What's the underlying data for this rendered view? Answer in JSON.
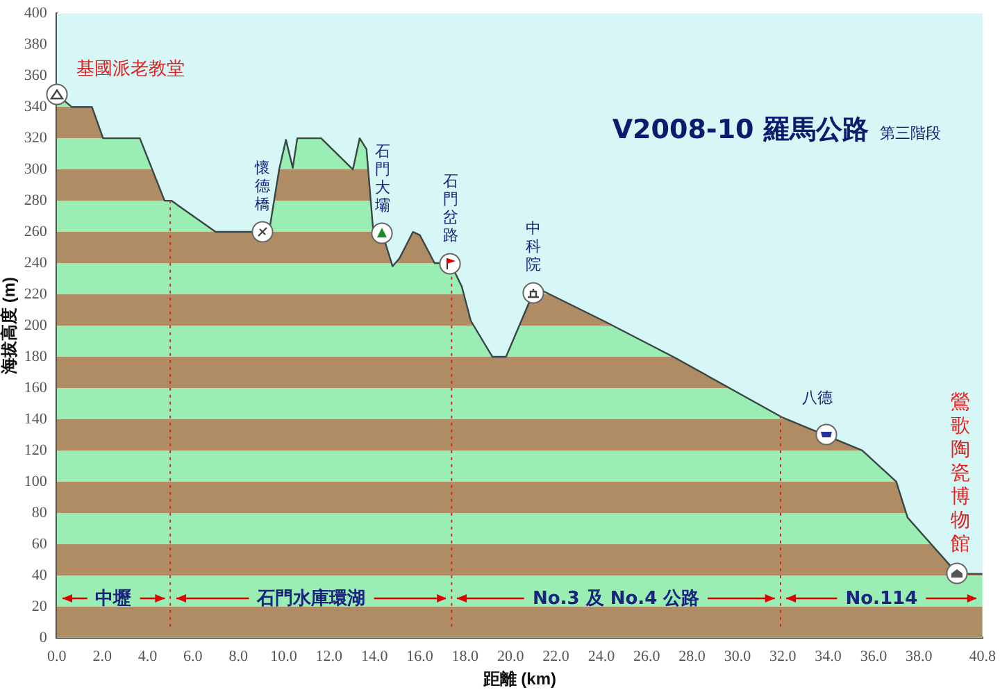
{
  "chart_data": {
    "type": "area",
    "title": "V2008-10 羅馬公路",
    "subtitle": "第三階段",
    "xlabel": "距離 (km)",
    "ylabel": "海拔高度 (m)",
    "x": [
      0,
      0.66,
      1.55,
      2.04,
      3.66,
      4.75,
      5.05,
      7.0,
      9.07,
      9.4,
      9.8,
      10.1,
      10.4,
      10.6,
      11.65,
      13.05,
      13.35,
      13.65,
      13.95,
      14.35,
      14.8,
      15.1,
      15.7,
      16.0,
      16.65,
      17.35,
      17.85,
      18.25,
      19.2,
      19.8,
      21.0,
      21.45,
      24.1,
      26.1,
      27.3,
      32.0,
      34.0,
      35.5,
      37.0,
      37.5,
      39.7,
      40.8
    ],
    "series": [
      {
        "color": "#b08c64",
        "values": [
          348,
          340,
          340,
          320,
          320,
          280,
          280,
          260,
          260,
          264,
          300,
          319,
          301,
          320,
          320,
          300,
          320,
          313,
          260,
          259,
          238,
          243,
          260,
          258,
          240,
          240,
          225,
          203,
          180,
          180,
          221,
          222,
          203,
          188,
          179,
          141,
          129,
          120,
          100,
          77,
          41,
          41
        ]
      }
    ],
    "xlim": [
      0,
      40.8
    ],
    "ylim": [
      0,
      400
    ],
    "xticks": [
      {
        "value": 0,
        "label": "0.0"
      },
      {
        "value": 2,
        "label": "2.0"
      },
      {
        "value": 4,
        "label": "4.0"
      },
      {
        "value": 6,
        "label": "6.0"
      },
      {
        "value": 8,
        "label": "8.0"
      },
      {
        "value": 10,
        "label": "10.0"
      },
      {
        "value": 12,
        "label": "12.0"
      },
      {
        "value": 14,
        "label": "14.0"
      },
      {
        "value": 16,
        "label": "16.0"
      },
      {
        "value": 18,
        "label": "18.0"
      },
      {
        "value": 20,
        "label": "20.0"
      },
      {
        "value": 22,
        "label": "22.0"
      },
      {
        "value": 24,
        "label": "24.0"
      },
      {
        "value": 26,
        "label": "26.0"
      },
      {
        "value": 28,
        "label": "28.0"
      },
      {
        "value": 30,
        "label": "30.0"
      },
      {
        "value": 32,
        "label": "32.0"
      },
      {
        "value": 34,
        "label": "34.0"
      },
      {
        "value": 36,
        "label": "36.0"
      },
      {
        "value": 38,
        "label": "38.0"
      },
      {
        "value": 40.8,
        "label": "40.8"
      }
    ],
    "yticks": [
      0,
      20,
      40,
      60,
      80,
      100,
      120,
      140,
      160,
      180,
      200,
      220,
      240,
      260,
      280,
      300,
      320,
      340,
      360,
      380,
      400
    ],
    "ref_lines": [
      {
        "axis": "x",
        "value": 5.0,
        "color": "#e02020",
        "line_style": "dotted"
      },
      {
        "axis": "x",
        "value": 17.4,
        "color": "#e02020",
        "line_style": "dotted"
      },
      {
        "axis": "x",
        "value": 31.9,
        "color": "#e02020",
        "line_style": "dotted"
      }
    ],
    "annotations": [
      "中壢",
      "石門水庫環湖",
      "No.3 及 No.4 公路",
      "No.114",
      {
        "text": "基國派老教堂",
        "x": 0,
        "y": 348
      },
      {
        "text": "懷德橋",
        "x": 9.07,
        "y": 260
      },
      {
        "text": "石門大壩",
        "x": 14.35,
        "y": 259
      },
      {
        "text": "石門岔路",
        "x": 17.35,
        "y": 240
      },
      {
        "text": "中科院",
        "x": 21.0,
        "y": 221
      },
      {
        "text": "八德",
        "x": 33.9,
        "y": 130
      },
      {
        "text": "鶯歌陶瓷博物館",
        "x": 39.7,
        "y": 41
      }
    ],
    "grid": false,
    "legend": false,
    "marker": "none",
    "line_style": "solid"
  }
}
